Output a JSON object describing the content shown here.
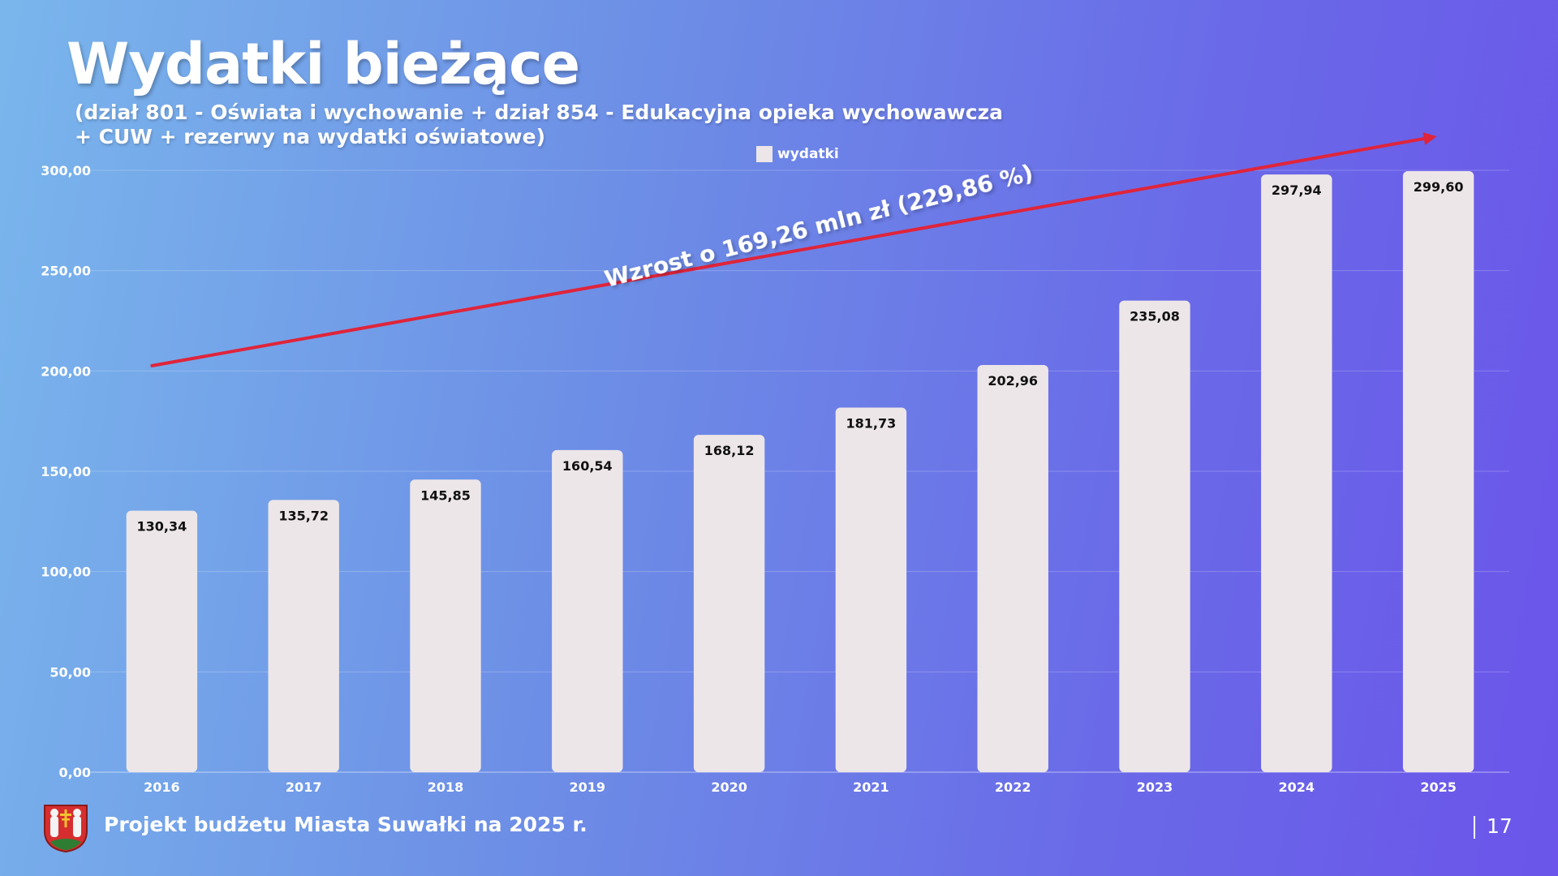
{
  "slide": {
    "title": "Wydatki bieżące",
    "subtitle_line1": "(dział 801 - Oświata i wychowanie + dział 854 - Edukacyjna opieka wychowawcza",
    "subtitle_line2": "+ CUW + rezerwy na wydatki oświatowe)",
    "annotation": "Wzrost o 169,26 mln zł (229,86 %)",
    "footer_text": "Projekt budżetu Miasta Suwałki na 2025 r.",
    "page_number": "17",
    "logo_icon": "suwalki-coat-of-arms-icon"
  },
  "colors": {
    "bar_fill": "#ede6e8",
    "trend_arrow": "#e0243a",
    "label_text": "#111111",
    "axis_text": "#ffffff"
  },
  "chart_data": {
    "type": "bar",
    "title": "Wydatki bieżące",
    "categories": [
      "2016",
      "2017",
      "2018",
      "2019",
      "2020",
      "2021",
      "2022",
      "2023",
      "2024",
      "2025"
    ],
    "series": [
      {
        "name": "wydatki",
        "values": [
          130.34,
          135.72,
          145.85,
          160.54,
          168.12,
          181.73,
          202.96,
          235.08,
          297.94,
          299.6
        ],
        "labels": [
          "130,34",
          "135,72",
          "145,85",
          "160,54",
          "168,12",
          "181,73",
          "202,96",
          "235,08",
          "297,94",
          "299,60"
        ]
      }
    ],
    "ylim": [
      0,
      300
    ],
    "yticks": [
      "0,00",
      "50,00",
      "100,00",
      "150,00",
      "200,00",
      "250,00",
      "300,00"
    ],
    "ytick_values": [
      0,
      50,
      100,
      150,
      200,
      250,
      300
    ],
    "grid": true,
    "legend": "top-center",
    "annotation": "Wzrost o 169,26 mln zł (229,86 %)",
    "trend_arrow": {
      "from_value": 202.6,
      "to_value": 316.5
    }
  }
}
